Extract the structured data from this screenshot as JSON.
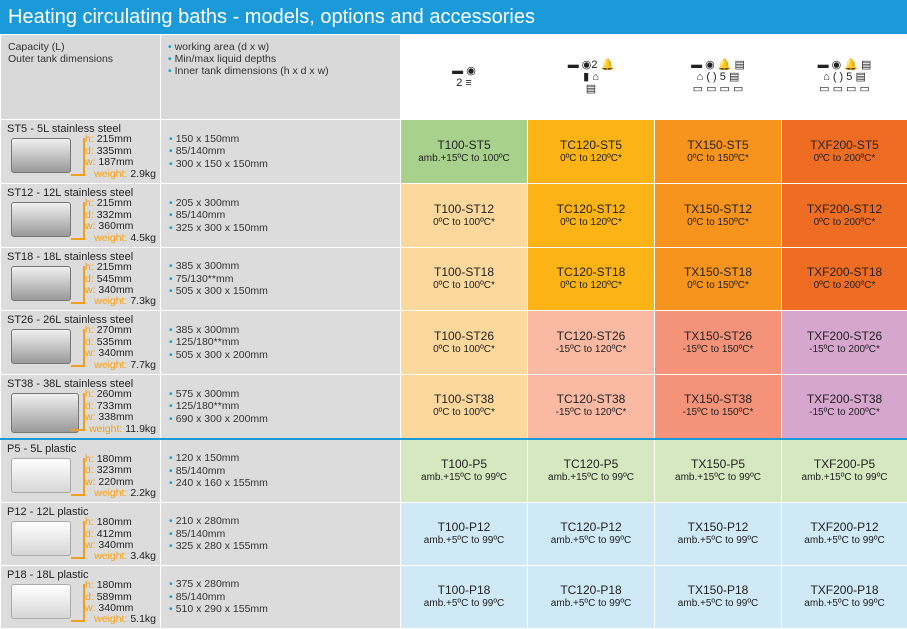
{
  "title": "Heating circulating baths - models, options and accessories",
  "header": {
    "capacity_line1": "Capacity (L)",
    "capacity_line2": "Outer tank dimensions",
    "specs": [
      "working area (d x w)",
      "Min/max liquid depths",
      "Inner tank dimensions (h x d x w)"
    ],
    "columns": [
      {
        "icons_line1": "▬ ◉",
        "icons_line2": "2 ≡",
        "icons_line3": ""
      },
      {
        "icons_line1": "▬ ◉2 🔔",
        "icons_line2": "▮ ⌂",
        "icons_line3": "▤"
      },
      {
        "icons_line1": "▬ ◉ 🔔 ▤",
        "icons_line2": "⌂ ( ) 5 ▤",
        "icons_line3": "▭ ▭ ▭ ▭"
      },
      {
        "icons_line1": "▬ ◉ 🔔 ▤",
        "icons_line2": "⌂ ( ) 5 ▤",
        "icons_line3": "▭ ▭ ▭ ▭"
      }
    ]
  },
  "rows": [
    {
      "name": "ST5 - 5L",
      "material": "stainless steel",
      "h": "215mm",
      "d": "335mm",
      "w": "187mm",
      "weight": "2.9kg",
      "specs": [
        "150 x 150mm",
        "85/140mm",
        "300 x 150 x 150mm"
      ],
      "models": [
        {
          "code": "T100-ST5",
          "range": "amb.+15ºC to 100ºC",
          "color": "#a9d18e"
        },
        {
          "code": "TC120-ST5",
          "range": "0ºC to 120ºC*",
          "color": "#fbb316"
        },
        {
          "code": "TX150-ST5",
          "range": "0ºC to 150ºC*",
          "color": "#f7941d"
        },
        {
          "code": "TXF200-ST5",
          "range": "0ºC to 200ºC*",
          "color": "#ef6c23"
        }
      ]
    },
    {
      "name": "ST12 - 12L",
      "material": "stainless steel",
      "h": "215mm",
      "d": "332mm",
      "w": "360mm",
      "weight": "4.5kg",
      "specs": [
        "205 x 300mm",
        "85/140mm",
        "325 x 300 x 150mm"
      ],
      "models": [
        {
          "code": "T100-ST12",
          "range": "0ºC to 100ºC*",
          "color": "#fcd89c"
        },
        {
          "code": "TC120-ST12",
          "range": "0ºC to 120ºC*",
          "color": "#fbb316"
        },
        {
          "code": "TX150-ST12",
          "range": "0ºC to 150ºC*",
          "color": "#f7941d"
        },
        {
          "code": "TXF200-ST12",
          "range": "0ºC to 200ºC*",
          "color": "#ef6c23"
        }
      ]
    },
    {
      "name": "ST18 - 18L",
      "material": "stainless steel",
      "h": "215mm",
      "d": "545mm",
      "w": "340mm",
      "weight": "7.3kg",
      "specs": [
        "385 x 300mm",
        "75/130**mm",
        "505 x 300 x 150mm"
      ],
      "models": [
        {
          "code": "T100-ST18",
          "range": "0ºC to 100ºC*",
          "color": "#fcd89c"
        },
        {
          "code": "TC120-ST18",
          "range": "0ºC to 120ºC*",
          "color": "#fbb316"
        },
        {
          "code": "TX150-ST18",
          "range": "0ºC to 150ºC*",
          "color": "#f7941d"
        },
        {
          "code": "TXF200-ST18",
          "range": "0ºC to 200ºC*",
          "color": "#ef6c23"
        }
      ]
    },
    {
      "name": "ST26 - 26L",
      "material": "stainless steel",
      "h": "270mm",
      "d": "535mm",
      "w": "340mm",
      "weight": "7.7kg",
      "specs": [
        "385 x 300mm",
        "125/180**mm",
        "505 x 300 x 200mm"
      ],
      "models": [
        {
          "code": "T100-ST26",
          "range": "0ºC to 100ºC*",
          "color": "#fcd89c"
        },
        {
          "code": "TC120-ST26",
          "range": "-15ºC to 120ºC*",
          "color": "#f9b9a3"
        },
        {
          "code": "TX150-ST26",
          "range": "-15ºC to 150ºC*",
          "color": "#f4927a"
        },
        {
          "code": "TXF200-ST26",
          "range": "-15ºC to 200ºC*",
          "color": "#d7a6cf"
        }
      ]
    },
    {
      "name": "ST38 - 38L",
      "material": "stainless steel",
      "h": "260mm",
      "d": "733mm",
      "w": "338mm",
      "weight": "11.9kg",
      "specs": [
        "575 x 300mm",
        "125/180**mm",
        "690 x 300 x 200mm"
      ],
      "models": [
        {
          "code": "T100-ST38",
          "range": "0ºC to 100ºC*",
          "color": "#fcd89c"
        },
        {
          "code": "TC120-ST38",
          "range": "-15ºC to 120ºC*",
          "color": "#f9b9a3"
        },
        {
          "code": "TX150-ST38",
          "range": "-15ºC to 150ºC*",
          "color": "#f4927a"
        },
        {
          "code": "TXF200-ST38",
          "range": "-15ºC to 200ºC*",
          "color": "#d7a6cf"
        }
      ]
    },
    {
      "name": "P5 - 5L",
      "material": "plastic",
      "h": "180mm",
      "d": "323mm",
      "w": "220mm",
      "weight": "2.2kg",
      "specs": [
        "120 x 150mm",
        "85/140mm",
        "240 x 160 x 155mm"
      ],
      "models": [
        {
          "code": "T100-P5",
          "range": "amb.+15ºC to 99ºC",
          "color": "#d5e8c0"
        },
        {
          "code": "TC120-P5",
          "range": "amb.+15ºC to 99ºC",
          "color": "#d5e8c0"
        },
        {
          "code": "TX150-P5",
          "range": "amb.+15ºC to 99ºC",
          "color": "#d5e8c0"
        },
        {
          "code": "TXF200-P5",
          "range": "amb.+15ºC to 99ºC",
          "color": "#d5e8c0"
        }
      ]
    },
    {
      "name": "P12 - 12L",
      "material": "plastic",
      "h": "180mm",
      "d": "412mm",
      "w": "340mm",
      "weight": "3.4kg",
      "specs": [
        "210 x 280mm",
        "85/140mm",
        "325 x 280 x 155mm"
      ],
      "models": [
        {
          "code": "T100-P12",
          "range": "amb.+5ºC to 99ºC",
          "color": "#cfe9f6"
        },
        {
          "code": "TC120-P12",
          "range": "amb.+5ºC to 99ºC",
          "color": "#cfe9f6"
        },
        {
          "code": "TX150-P12",
          "range": "amb.+5ºC to 99ºC",
          "color": "#cfe9f6"
        },
        {
          "code": "TXF200-P12",
          "range": "amb.+5ºC to 99ºC",
          "color": "#cfe9f6"
        }
      ]
    },
    {
      "name": "P18 - 18L",
      "material": "plastic",
      "h": "180mm",
      "d": "589mm",
      "w": "340mm",
      "weight": "5.1kg",
      "specs": [
        "375 x 280mm",
        "85/140mm",
        "510 x 290 x 155mm"
      ],
      "models": [
        {
          "code": "T100-P18",
          "range": "amb.+5ºC to 99ºC",
          "color": "#cfe9f6"
        },
        {
          "code": "TC120-P18",
          "range": "amb.+5ºC to 99ºC",
          "color": "#cfe9f6"
        },
        {
          "code": "TX150-P18",
          "range": "amb.+5ºC to 99ºC",
          "color": "#cfe9f6"
        },
        {
          "code": "TXF200-P18",
          "range": "amb.+5ºC to 99ºC",
          "color": "#cfe9f6"
        }
      ]
    }
  ]
}
